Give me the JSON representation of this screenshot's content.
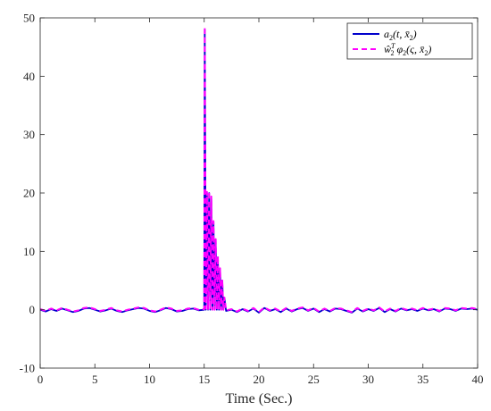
{
  "chart_data": {
    "type": "line",
    "xlabel": "Time (Sec.)",
    "ylabel": "",
    "xlim": [
      0,
      40
    ],
    "ylim": [
      -10,
      50
    ],
    "xticks": [
      "0",
      "5",
      "10",
      "15",
      "20",
      "25",
      "30",
      "35",
      "40"
    ],
    "yticks": [
      "-10",
      "0",
      "10",
      "20",
      "30",
      "40",
      "50"
    ],
    "grid": false,
    "legend_position": "top-right",
    "series": [
      {
        "name": "a_2(t, x̄_2)",
        "color": "#0000cc",
        "style": "solid",
        "x": [
          0,
          0.5,
          1,
          1.5,
          2,
          2.5,
          3,
          3.5,
          4,
          4.5,
          5,
          5.5,
          6,
          6.5,
          7,
          7.5,
          8,
          8.5,
          9,
          9.5,
          10,
          10.5,
          11,
          11.5,
          12,
          12.5,
          13,
          13.5,
          14,
          14.5,
          15,
          15.05,
          15.15,
          15.25,
          15.35,
          15.45,
          15.55,
          15.65,
          15.75,
          15.85,
          15.95,
          16.05,
          16.15,
          16.25,
          16.35,
          16.45,
          16.55,
          16.65,
          16.75,
          16.85,
          17,
          17.5,
          18,
          18.5,
          19,
          19.5,
          20,
          20.5,
          21,
          21.5,
          22,
          22.5,
          23,
          23.5,
          24,
          24.5,
          25,
          25.5,
          26,
          26.5,
          27,
          27.5,
          28,
          28.5,
          29,
          29.5,
          30,
          30.5,
          31,
          31.5,
          32,
          32.5,
          33,
          33.5,
          34,
          34.5,
          35,
          35.5,
          36,
          36.5,
          37,
          37.5,
          38,
          38.5,
          39,
          39.5,
          40
        ],
        "y": [
          0,
          -0.3,
          0.1,
          -0.2,
          0.2,
          -0.1,
          -0.4,
          -0.2,
          0.2,
          0.3,
          0,
          -0.3,
          -0.1,
          0.2,
          -0.2,
          -0.4,
          -0.1,
          0.1,
          0.3,
          0.2,
          -0.2,
          -0.4,
          -0.1,
          0.3,
          0.1,
          -0.3,
          -0.2,
          0.1,
          0.2,
          -0.1,
          0,
          48,
          0,
          20,
          0,
          20,
          0,
          19,
          0,
          15,
          0,
          12,
          0,
          9,
          0,
          7,
          0,
          5,
          0,
          2,
          -0.2,
          0,
          -0.4,
          0.1,
          -0.3,
          0.2,
          -0.5,
          0.3,
          -0.2,
          0.1,
          -0.4,
          0.2,
          -0.3,
          0.1,
          0.3,
          -0.2,
          0.2,
          -0.4,
          0.1,
          -0.3,
          0.2,
          0.1,
          -0.2,
          -0.5,
          0.2,
          -0.3,
          0.1,
          -0.2,
          0.3,
          -0.4,
          0.1,
          -0.3,
          0.2,
          -0.1,
          0.1,
          -0.2,
          0.2,
          -0.1,
          0.1,
          -0.3,
          0.2,
          0.1,
          -0.2,
          0.2,
          0.1,
          0.2,
          0
        ]
      },
      {
        "name": "ŵ_2^T φ_2(ς, x̄_2)",
        "color": "#ff00ff",
        "style": "dashed",
        "x": [
          0,
          0.5,
          1,
          1.5,
          2,
          2.5,
          3,
          3.5,
          4,
          4.5,
          5,
          5.5,
          6,
          6.5,
          7,
          7.5,
          8,
          8.5,
          9,
          9.5,
          10,
          10.5,
          11,
          11.5,
          12,
          12.5,
          13,
          13.5,
          14,
          14.5,
          15,
          15.05,
          15.15,
          15.25,
          15.35,
          15.45,
          15.55,
          15.65,
          15.75,
          15.85,
          15.95,
          16.05,
          16.15,
          16.25,
          16.35,
          16.45,
          16.55,
          16.65,
          16.75,
          16.85,
          17,
          17.5,
          18,
          18.5,
          19,
          19.5,
          20,
          20.5,
          21,
          21.5,
          22,
          22.5,
          23,
          23.5,
          24,
          24.5,
          25,
          25.5,
          26,
          26.5,
          27,
          27.5,
          28,
          28.5,
          29,
          29.5,
          30,
          30.5,
          31,
          31.5,
          32,
          32.5,
          33,
          33.5,
          34,
          34.5,
          35,
          35.5,
          36,
          36.5,
          37,
          37.5,
          38,
          38.5,
          39,
          39.5,
          40
        ],
        "y": [
          0.1,
          -0.2,
          0.2,
          -0.1,
          0.3,
          0,
          -0.3,
          -0.1,
          0.3,
          0.4,
          0.1,
          -0.2,
          0,
          0.3,
          -0.1,
          -0.3,
          0,
          0.2,
          0.4,
          0.3,
          -0.1,
          -0.3,
          0,
          0.4,
          0.2,
          -0.2,
          -0.1,
          0.2,
          0.3,
          0,
          0.1,
          48.5,
          0.2,
          20.2,
          0.1,
          20.3,
          0.1,
          19.4,
          0,
          15.2,
          0,
          12.1,
          0,
          9.2,
          0,
          7.1,
          0,
          5.2,
          0,
          2.1,
          -0.1,
          0.1,
          -0.3,
          0.2,
          -0.2,
          0.3,
          -0.4,
          0.4,
          -0.1,
          0.2,
          -0.3,
          0.3,
          -0.2,
          0.2,
          0.4,
          -0.1,
          0.3,
          -0.3,
          0.2,
          -0.2,
          0.3,
          0.2,
          -0.1,
          -0.4,
          0.3,
          -0.2,
          0.2,
          -0.1,
          0.4,
          -0.3,
          0.2,
          -0.2,
          0.3,
          0,
          0.2,
          -0.1,
          0.3,
          0,
          0.2,
          -0.2,
          0.3,
          0.2,
          -0.1,
          0.3,
          0.2,
          0.3,
          0.1
        ]
      }
    ]
  }
}
